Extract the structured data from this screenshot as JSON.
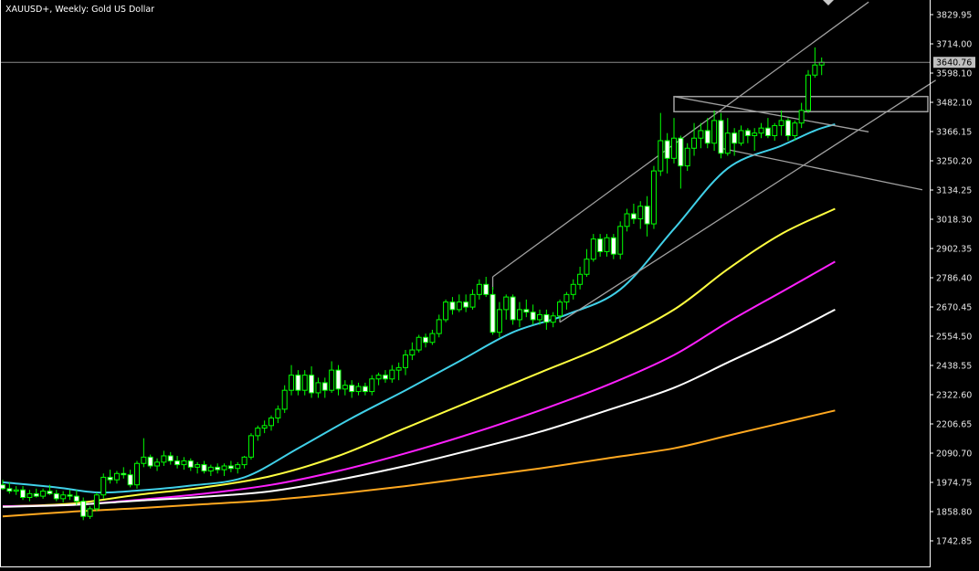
{
  "header": {
    "symbol_title": "XAUUSD+, Weekly:  Gold US Dollar"
  },
  "colors": {
    "background": "#000000",
    "axis": "#ffffff",
    "candle_up_body": "#000000",
    "candle_up_border": "#00ff00",
    "candle_down_body": "#ffffff",
    "candle_down_border": "#00ff00",
    "wick": "#00ff00",
    "channel_lines": "#a0a0a0",
    "price_line": "#8a8a8a",
    "price_box_bg": "#c0c0c0"
  },
  "chart_data": {
    "type": "candlestick",
    "symbol": "XAUUSD+",
    "timeframe": "Weekly",
    "description": "Gold US Dollar",
    "y_ticks": [
      "3829.95",
      "3714.00",
      "3598.10",
      "3482.10",
      "3366.15",
      "3250.20",
      "3134.25",
      "3018.30",
      "2902.35",
      "2786.40",
      "2670.45",
      "2554.50",
      "2438.55",
      "2322.60",
      "2206.65",
      "2090.70",
      "1974.75",
      "1858.80",
      "1742.85"
    ],
    "ylim": [
      1690,
      3885
    ],
    "current_price": "3640.76",
    "candles": [
      [
        1965,
        1985,
        1945,
        1950
      ],
      [
        1950,
        1975,
        1930,
        1940
      ],
      [
        1940,
        1960,
        1925,
        1945
      ],
      [
        1945,
        1960,
        1905,
        1915
      ],
      [
        1915,
        1945,
        1900,
        1930
      ],
      [
        1930,
        1950,
        1915,
        1920
      ],
      [
        1920,
        1950,
        1910,
        1940
      ],
      [
        1940,
        1965,
        1925,
        1930
      ],
      [
        1930,
        1945,
        1900,
        1910
      ],
      [
        1910,
        1940,
        1895,
        1925
      ],
      [
        1925,
        1945,
        1905,
        1920
      ],
      [
        1920,
        1945,
        1885,
        1900
      ],
      [
        1900,
        1915,
        1825,
        1840
      ],
      [
        1840,
        1880,
        1830,
        1870
      ],
      [
        1870,
        1935,
        1860,
        1925
      ],
      [
        1925,
        2010,
        1910,
        1995
      ],
      [
        1995,
        2025,
        1970,
        1985
      ],
      [
        1985,
        2020,
        1970,
        2010
      ],
      [
        2010,
        2035,
        1990,
        2005
      ],
      [
        2005,
        2025,
        1955,
        1965
      ],
      [
        1965,
        2060,
        1950,
        2050
      ],
      [
        2050,
        2150,
        2035,
        2075
      ],
      [
        2075,
        2085,
        2030,
        2040
      ],
      [
        2040,
        2070,
        2020,
        2055
      ],
      [
        2055,
        2100,
        2040,
        2080
      ],
      [
        2080,
        2095,
        2045,
        2060
      ],
      [
        2060,
        2080,
        2030,
        2045
      ],
      [
        2045,
        2075,
        2025,
        2060
      ],
      [
        2060,
        2070,
        2020,
        2035
      ],
      [
        2035,
        2055,
        2010,
        2045
      ],
      [
        2045,
        2060,
        2010,
        2020
      ],
      [
        2020,
        2045,
        2000,
        2035
      ],
      [
        2035,
        2050,
        2010,
        2025
      ],
      [
        2025,
        2050,
        2000,
        2040
      ],
      [
        2040,
        2060,
        2015,
        2030
      ],
      [
        2030,
        2055,
        2010,
        2045
      ],
      [
        2045,
        2080,
        2030,
        2075
      ],
      [
        2075,
        2170,
        2065,
        2160
      ],
      [
        2160,
        2200,
        2140,
        2190
      ],
      [
        2190,
        2220,
        2170,
        2200
      ],
      [
        2200,
        2240,
        2180,
        2230
      ],
      [
        2230,
        2280,
        2210,
        2265
      ],
      [
        2265,
        2360,
        2250,
        2340
      ],
      [
        2340,
        2440,
        2320,
        2400
      ],
      [
        2400,
        2420,
        2320,
        2340
      ],
      [
        2340,
        2420,
        2320,
        2400
      ],
      [
        2400,
        2435,
        2310,
        2330
      ],
      [
        2330,
        2390,
        2310,
        2370
      ],
      [
        2370,
        2390,
        2310,
        2340
      ],
      [
        2340,
        2455,
        2330,
        2420
      ],
      [
        2420,
        2440,
        2320,
        2345
      ],
      [
        2345,
        2380,
        2320,
        2360
      ],
      [
        2360,
        2380,
        2310,
        2335
      ],
      [
        2335,
        2370,
        2320,
        2355
      ],
      [
        2355,
        2370,
        2320,
        2335
      ],
      [
        2335,
        2400,
        2320,
        2385
      ],
      [
        2385,
        2410,
        2360,
        2400
      ],
      [
        2400,
        2420,
        2370,
        2385
      ],
      [
        2385,
        2440,
        2370,
        2420
      ],
      [
        2420,
        2450,
        2380,
        2430
      ],
      [
        2430,
        2500,
        2400,
        2480
      ],
      [
        2480,
        2530,
        2460,
        2500
      ],
      [
        2500,
        2560,
        2490,
        2550
      ],
      [
        2550,
        2565,
        2510,
        2530
      ],
      [
        2530,
        2580,
        2520,
        2565
      ],
      [
        2565,
        2640,
        2550,
        2620
      ],
      [
        2620,
        2700,
        2610,
        2690
      ],
      [
        2690,
        2710,
        2640,
        2660
      ],
      [
        2660,
        2720,
        2650,
        2690
      ],
      [
        2690,
        2720,
        2650,
        2670
      ],
      [
        2670,
        2740,
        2660,
        2720
      ],
      [
        2720,
        2780,
        2700,
        2760
      ],
      [
        2760,
        2790,
        2710,
        2720
      ],
      [
        2720,
        2750,
        2560,
        2570
      ],
      [
        2570,
        2690,
        2550,
        2660
      ],
      [
        2660,
        2720,
        2620,
        2710
      ],
      [
        2710,
        2720,
        2600,
        2620
      ],
      [
        2620,
        2690,
        2590,
        2660
      ],
      [
        2660,
        2700,
        2630,
        2650
      ],
      [
        2650,
        2680,
        2600,
        2620
      ],
      [
        2620,
        2660,
        2600,
        2640
      ],
      [
        2640,
        2660,
        2580,
        2610
      ],
      [
        2610,
        2650,
        2590,
        2635
      ],
      [
        2635,
        2700,
        2620,
        2690
      ],
      [
        2690,
        2730,
        2660,
        2720
      ],
      [
        2720,
        2780,
        2700,
        2760
      ],
      [
        2760,
        2830,
        2740,
        2800
      ],
      [
        2800,
        2900,
        2790,
        2860
      ],
      [
        2860,
        2960,
        2850,
        2940
      ],
      [
        2940,
        2960,
        2870,
        2890
      ],
      [
        2890,
        2960,
        2870,
        2945
      ],
      [
        2945,
        2960,
        2860,
        2880
      ],
      [
        2880,
        3010,
        2860,
        2990
      ],
      [
        2990,
        3060,
        2970,
        3040
      ],
      [
        3040,
        3080,
        3000,
        3020
      ],
      [
        3020,
        3090,
        2980,
        3070
      ],
      [
        3070,
        3110,
        2950,
        3000
      ],
      [
        3000,
        3230,
        2980,
        3210
      ],
      [
        3210,
        3440,
        3190,
        3330
      ],
      [
        3330,
        3360,
        3200,
        3260
      ],
      [
        3260,
        3420,
        3240,
        3340
      ],
      [
        3340,
        3350,
        3140,
        3230
      ],
      [
        3230,
        3320,
        3210,
        3300
      ],
      [
        3300,
        3400,
        3270,
        3340
      ],
      [
        3340,
        3400,
        3300,
        3370
      ],
      [
        3370,
        3420,
        3300,
        3320
      ],
      [
        3320,
        3450,
        3290,
        3410
      ],
      [
        3410,
        3440,
        3260,
        3280
      ],
      [
        3280,
        3420,
        3270,
        3360
      ],
      [
        3360,
        3380,
        3270,
        3320
      ],
      [
        3320,
        3390,
        3310,
        3370
      ],
      [
        3370,
        3380,
        3320,
        3350
      ],
      [
        3350,
        3380,
        3290,
        3360
      ],
      [
        3360,
        3400,
        3340,
        3380
      ],
      [
        3380,
        3420,
        3340,
        3350
      ],
      [
        3350,
        3400,
        3330,
        3390
      ],
      [
        3390,
        3450,
        3350,
        3410
      ],
      [
        3410,
        3420,
        3330,
        3350
      ],
      [
        3350,
        3410,
        3330,
        3400
      ],
      [
        3400,
        3480,
        3380,
        3450
      ],
      [
        3450,
        3610,
        3440,
        3590
      ],
      [
        3590,
        3700,
        3580,
        3630
      ],
      [
        3630,
        3660,
        3590,
        3641
      ]
    ],
    "moving_averages": [
      {
        "color": "#40d0e8",
        "anchors": [
          [
            0,
            1975
          ],
          [
            8,
            1955
          ],
          [
            14,
            1935
          ],
          [
            20,
            1942
          ],
          [
            28,
            1962
          ],
          [
            36,
            1995
          ],
          [
            44,
            2110
          ],
          [
            52,
            2230
          ],
          [
            60,
            2340
          ],
          [
            68,
            2455
          ],
          [
            76,
            2570
          ],
          [
            84,
            2640
          ],
          [
            92,
            2740
          ],
          [
            100,
            2980
          ],
          [
            108,
            3220
          ],
          [
            116,
            3310
          ],
          [
            121,
            3370
          ],
          [
            124,
            3395
          ]
        ]
      },
      {
        "color": "#ffff40",
        "anchors": [
          [
            0,
            1880
          ],
          [
            10,
            1890
          ],
          [
            20,
            1925
          ],
          [
            30,
            1955
          ],
          [
            40,
            2000
          ],
          [
            50,
            2080
          ],
          [
            60,
            2190
          ],
          [
            70,
            2300
          ],
          [
            80,
            2410
          ],
          [
            90,
            2520
          ],
          [
            100,
            2660
          ],
          [
            108,
            2820
          ],
          [
            116,
            2960
          ],
          [
            124,
            3060
          ]
        ]
      },
      {
        "color": "#ff20ff",
        "anchors": [
          [
            0,
            1880
          ],
          [
            10,
            1885
          ],
          [
            20,
            1905
          ],
          [
            30,
            1930
          ],
          [
            40,
            1965
          ],
          [
            50,
            2020
          ],
          [
            60,
            2090
          ],
          [
            70,
            2170
          ],
          [
            80,
            2260
          ],
          [
            90,
            2360
          ],
          [
            100,
            2480
          ],
          [
            108,
            2610
          ],
          [
            116,
            2730
          ],
          [
            124,
            2850
          ]
        ]
      },
      {
        "color": "#ffffff",
        "anchors": [
          [
            0,
            1878
          ],
          [
            10,
            1885
          ],
          [
            20,
            1902
          ],
          [
            30,
            1918
          ],
          [
            40,
            1940
          ],
          [
            50,
            1985
          ],
          [
            60,
            2040
          ],
          [
            70,
            2105
          ],
          [
            80,
            2175
          ],
          [
            90,
            2260
          ],
          [
            100,
            2350
          ],
          [
            108,
            2450
          ],
          [
            116,
            2550
          ],
          [
            124,
            2660
          ]
        ]
      },
      {
        "color": "#ffa820",
        "anchors": [
          [
            0,
            1840
          ],
          [
            10,
            1858
          ],
          [
            20,
            1872
          ],
          [
            30,
            1888
          ],
          [
            40,
            1905
          ],
          [
            50,
            1930
          ],
          [
            60,
            1960
          ],
          [
            70,
            1995
          ],
          [
            80,
            2030
          ],
          [
            90,
            2070
          ],
          [
            100,
            2110
          ],
          [
            108,
            2160
          ],
          [
            116,
            2210
          ],
          [
            124,
            2260
          ]
        ]
      }
    ],
    "annotations": {
      "upper_channel": [
        [
          73,
          2790
        ],
        [
          129,
          3880
        ]
      ],
      "lower_channel": [
        [
          83,
          2610
        ],
        [
          139,
          3570
        ]
      ],
      "lower_channel_start": [
        [
          83,
          2610
        ]
      ],
      "flag_upper": [
        [
          100,
          3505
        ],
        [
          129,
          3365
        ]
      ],
      "flag_lower": [
        [
          107,
          3300
        ],
        [
          137,
          3135
        ]
      ],
      "resistance_box": [
        [
          100,
          3505
        ],
        [
          140,
          3445
        ]
      ]
    }
  }
}
